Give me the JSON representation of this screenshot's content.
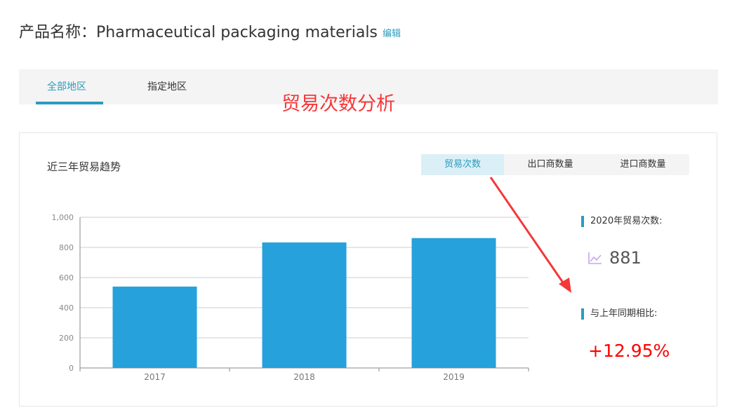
{
  "header": {
    "title": "产品名称：Pharmaceutical packaging materials",
    "edit_label": "编辑"
  },
  "tabs": [
    {
      "label": "全部地区",
      "active": true
    },
    {
      "label": "指定地区",
      "active": false
    }
  ],
  "annotation": "贸易次数分析",
  "panel": {
    "title": "近三年贸易趋势",
    "segments": [
      {
        "label": "贸易次数",
        "active": true
      },
      {
        "label": "出口商数量"
      },
      {
        "label": "进口商数量"
      }
    ],
    "stats": {
      "count_label": "2020年贸易次数:",
      "count_value": "881",
      "count_icon": "line-chart-icon",
      "yoy_label": "与上年同期相比:",
      "yoy_value": "+12.95%"
    }
  },
  "colors": {
    "accent": "#2a9bbf",
    "bar": "#26a1db",
    "up": "#ff0000",
    "annotation": "#f5373a"
  },
  "chart_data": {
    "type": "bar",
    "categories": [
      "2017",
      "2018",
      "2019"
    ],
    "values": [
      540,
      833,
      862
    ],
    "ylim": [
      0,
      1000
    ],
    "yticks": [
      "0",
      "200",
      "400",
      "600",
      "800",
      "1,000"
    ],
    "grid": true
  }
}
